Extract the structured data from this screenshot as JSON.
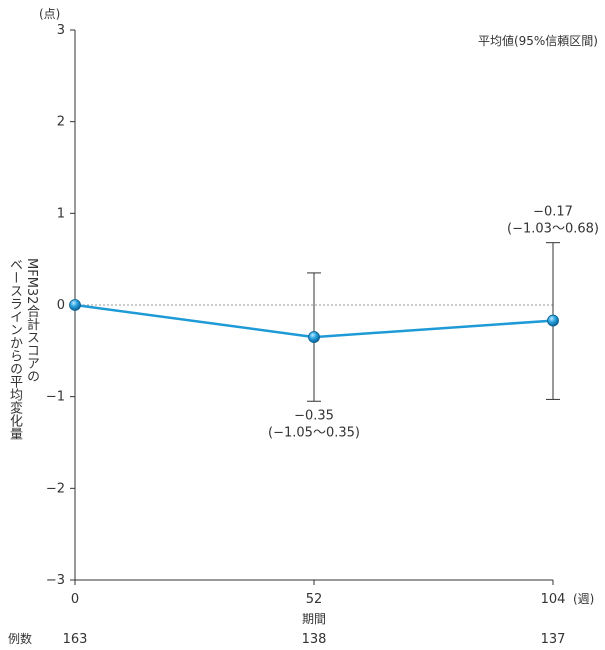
{
  "chart_data": {
    "type": "line",
    "title": "",
    "legend_note": "平均値(95%信頼区間)",
    "ylabel_lines": [
      "MFM32合計スコアの",
      "ベースラインからの平均変化量"
    ],
    "y_unit": "(点)",
    "xlabel": "期間",
    "x_unit": "(週)",
    "ylim": [
      -3,
      3
    ],
    "yticks": [
      "3",
      "2",
      "1",
      "0",
      "−1",
      "−2",
      "−3"
    ],
    "ytick_values": [
      3,
      2,
      1,
      0,
      -1,
      -2,
      -3
    ],
    "xlim": [
      0,
      104
    ],
    "categories": [
      "0",
      "52",
      "104"
    ],
    "x": [
      0,
      52,
      104
    ],
    "series": [
      {
        "name": "平均値",
        "values": [
          0,
          -0.35,
          -0.17
        ],
        "ci_low": [
          0,
          -1.05,
          -1.03
        ],
        "ci_high": [
          0,
          0.35,
          0.68
        ],
        "color": "#1e9ad6"
      }
    ],
    "annotations": [
      {
        "x": 52,
        "line1": "−0.35",
        "line2": "(−1.05〜0.35)",
        "position": "below"
      },
      {
        "x": 104,
        "line1": "−0.17",
        "line2": "(−1.03〜0.68)",
        "position": "above"
      }
    ],
    "counts_label": "例数",
    "counts": [
      "163",
      "138",
      "137"
    ],
    "zero_line": "dotted"
  }
}
